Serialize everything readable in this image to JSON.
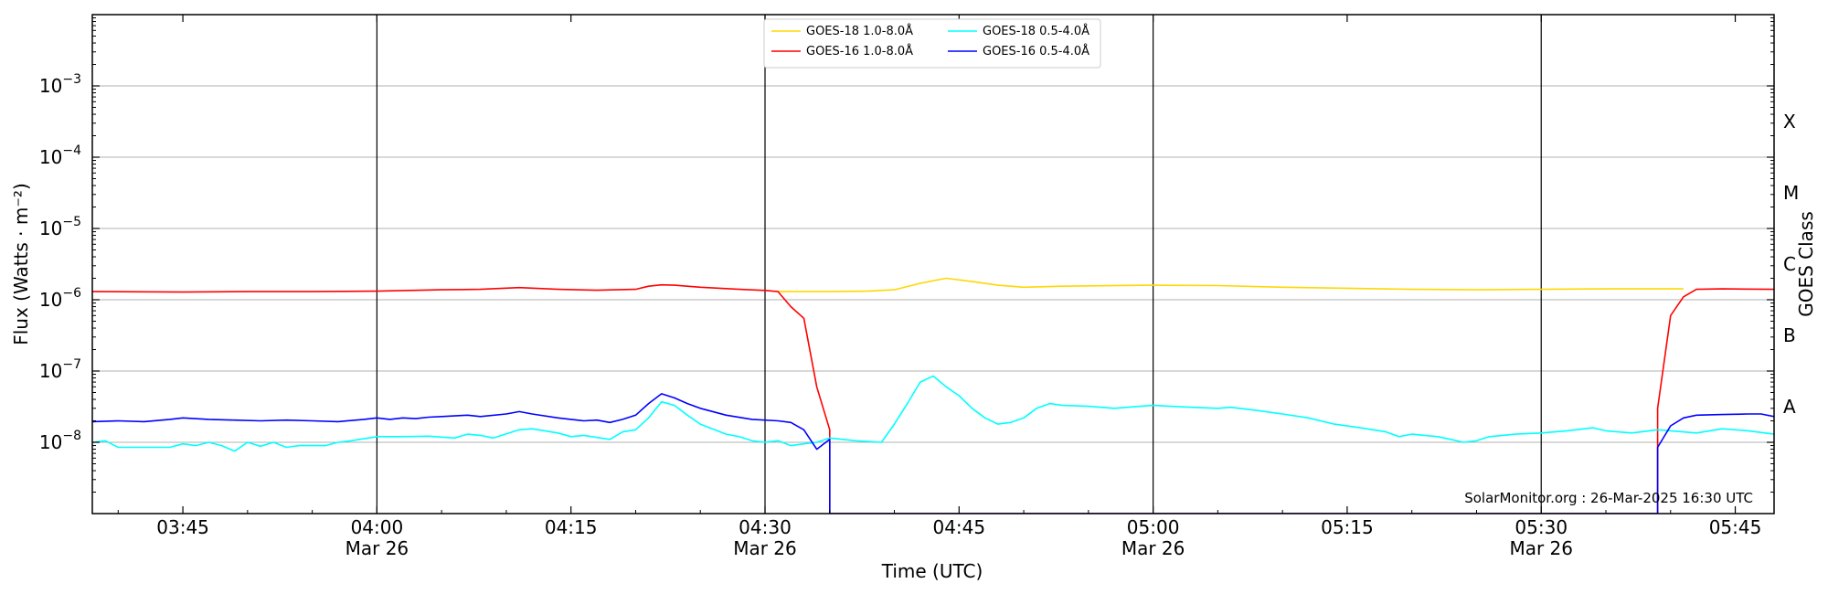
{
  "chart_data": {
    "type": "line",
    "xlabel": "Time (UTC)",
    "ylabel": "Flux (Watts · m⁻²)",
    "right_axis_title": "GOES Class",
    "credit": "SolarMonitor.org : 26-Mar-2025 16:30 UTC",
    "x_range": [
      "03:38",
      "05:48"
    ],
    "ylim": [
      1e-09,
      0.01
    ],
    "log_scale": true,
    "grid": "horizontal",
    "x_ticks": [
      {
        "time": "03:45",
        "label": "03:45",
        "sublabel": ""
      },
      {
        "time": "04:00",
        "label": "04:00",
        "sublabel": "Mar 26"
      },
      {
        "time": "04:15",
        "label": "04:15",
        "sublabel": ""
      },
      {
        "time": "04:30",
        "label": "04:30",
        "sublabel": "Mar 26"
      },
      {
        "time": "04:45",
        "label": "04:45",
        "sublabel": ""
      },
      {
        "time": "05:00",
        "label": "05:00",
        "sublabel": "Mar 26"
      },
      {
        "time": "05:15",
        "label": "05:15",
        "sublabel": ""
      },
      {
        "time": "05:30",
        "label": "05:30",
        "sublabel": "Mar 26"
      },
      {
        "time": "05:45",
        "label": "05:45",
        "sublabel": ""
      }
    ],
    "vertical_lines": [
      "04:00",
      "04:30",
      "05:00",
      "05:30"
    ],
    "y_ticks": [
      {
        "value": 1e-08,
        "base": "10",
        "exp": "−8"
      },
      {
        "value": 1e-07,
        "base": "10",
        "exp": "−7"
      },
      {
        "value": 1e-06,
        "base": "10",
        "exp": "−6"
      },
      {
        "value": 1e-05,
        "base": "10",
        "exp": "−5"
      },
      {
        "value": 0.0001,
        "base": "10",
        "exp": "−4"
      },
      {
        "value": 0.001,
        "base": "10",
        "exp": "−3"
      }
    ],
    "class_labels": [
      {
        "label": "A",
        "value": 3.16e-08
      },
      {
        "label": "B",
        "value": 3.16e-07
      },
      {
        "label": "C",
        "value": 3.16e-06
      },
      {
        "label": "M",
        "value": 3.16e-05
      },
      {
        "label": "X",
        "value": 0.000316
      }
    ],
    "legend": [
      {
        "label": "GOES-18 1.0-8.0Å",
        "color": "#ffd700"
      },
      {
        "label": "GOES-16 1.0-8.0Å",
        "color": "#ff0000"
      },
      {
        "label": "GOES-18 0.5-4.0Å",
        "color": "#00ffff"
      },
      {
        "label": "GOES-16 0.5-4.0Å",
        "color": "#0000ff"
      }
    ],
    "series": [
      {
        "name": "GOES-18 1.0-8.0Å",
        "color": "#ffd700",
        "points": [
          [
            "04:31",
            1.3e-06
          ],
          [
            "04:35",
            1.3e-06
          ],
          [
            "04:38",
            1.32e-06
          ],
          [
            "04:40",
            1.38e-06
          ],
          [
            "04:42",
            1.7e-06
          ],
          [
            "04:44",
            2e-06
          ],
          [
            "04:46",
            1.8e-06
          ],
          [
            "04:48",
            1.6e-06
          ],
          [
            "04:50",
            1.5e-06
          ],
          [
            "04:53",
            1.55e-06
          ],
          [
            "04:56",
            1.57e-06
          ],
          [
            "05:00",
            1.6e-06
          ],
          [
            "05:05",
            1.58e-06
          ],
          [
            "05:10",
            1.5e-06
          ],
          [
            "05:15",
            1.45e-06
          ],
          [
            "05:20",
            1.4e-06
          ],
          [
            "05:25",
            1.38e-06
          ],
          [
            "05:30",
            1.4e-06
          ],
          [
            "05:35",
            1.42e-06
          ],
          [
            "05:41",
            1.42e-06
          ]
        ]
      },
      {
        "name": "GOES-16 1.0-8.0Å",
        "color": "#ff0000",
        "points": [
          [
            "03:38",
            1.3e-06
          ],
          [
            "03:45",
            1.28e-06
          ],
          [
            "03:50",
            1.3e-06
          ],
          [
            "03:55",
            1.3e-06
          ],
          [
            "04:00",
            1.32e-06
          ],
          [
            "04:05",
            1.38e-06
          ],
          [
            "04:08",
            1.4e-06
          ],
          [
            "04:11",
            1.48e-06
          ],
          [
            "04:14",
            1.4e-06
          ],
          [
            "04:17",
            1.36e-06
          ],
          [
            "04:20",
            1.4e-06
          ],
          [
            "04:21",
            1.55e-06
          ],
          [
            "04:22",
            1.62e-06
          ],
          [
            "04:23",
            1.6e-06
          ],
          [
            "04:25",
            1.5e-06
          ],
          [
            "04:28",
            1.4e-06
          ],
          [
            "04:30",
            1.35e-06
          ],
          [
            "04:31",
            1.3e-06
          ],
          [
            "04:32",
            8e-07
          ],
          [
            "04:33",
            5.5e-07
          ],
          [
            "04:34",
            6e-08
          ],
          [
            "04:35",
            1.5e-08
          ],
          [
            "04:35",
            1e-09
          ],
          [
            "05:39",
            1e-09
          ],
          [
            "05:39",
            3e-08
          ],
          [
            "05:40",
            6e-07
          ],
          [
            "05:41",
            1.1e-06
          ],
          [
            "05:42",
            1.4e-06
          ],
          [
            "05:44",
            1.42e-06
          ],
          [
            "05:48",
            1.4e-06
          ]
        ]
      },
      {
        "name": "GOES-18 0.5-4.0Å",
        "color": "#00ffff",
        "points": [
          [
            "03:38",
            1e-08
          ],
          [
            "03:39",
            1.05e-08
          ],
          [
            "03:40",
            8.5e-09
          ],
          [
            "03:42",
            8.5e-09
          ],
          [
            "03:44",
            8.5e-09
          ],
          [
            "03:45",
            9.5e-09
          ],
          [
            "03:46",
            9e-09
          ],
          [
            "03:47",
            1e-08
          ],
          [
            "03:48",
            9e-09
          ],
          [
            "03:49",
            7.5e-09
          ],
          [
            "03:50",
            1e-08
          ],
          [
            "03:51",
            8.8e-09
          ],
          [
            "03:52",
            1e-08
          ],
          [
            "03:53",
            8.5e-09
          ],
          [
            "03:54",
            9e-09
          ],
          [
            "03:56",
            9e-09
          ],
          [
            "03:57",
            1e-08
          ],
          [
            "03:58",
            1.05e-08
          ],
          [
            "04:00",
            1.2e-08
          ],
          [
            "04:02",
            1.2e-08
          ],
          [
            "04:04",
            1.22e-08
          ],
          [
            "04:06",
            1.15e-08
          ],
          [
            "04:07",
            1.3e-08
          ],
          [
            "04:08",
            1.25e-08
          ],
          [
            "04:09",
            1.15e-08
          ],
          [
            "04:11",
            1.5e-08
          ],
          [
            "04:12",
            1.55e-08
          ],
          [
            "04:14",
            1.35e-08
          ],
          [
            "04:15",
            1.2e-08
          ],
          [
            "04:16",
            1.25e-08
          ],
          [
            "04:18",
            1.1e-08
          ],
          [
            "04:19",
            1.4e-08
          ],
          [
            "04:20",
            1.5e-08
          ],
          [
            "04:21",
            2.2e-08
          ],
          [
            "04:22",
            3.7e-08
          ],
          [
            "04:23",
            3.3e-08
          ],
          [
            "04:24",
            2.4e-08
          ],
          [
            "04:25",
            1.8e-08
          ],
          [
            "04:27",
            1.3e-08
          ],
          [
            "04:28",
            1.2e-08
          ],
          [
            "04:29",
            1.05e-08
          ],
          [
            "04:30",
            1e-08
          ],
          [
            "04:31",
            1.05e-08
          ],
          [
            "04:32",
            9e-09
          ],
          [
            "04:33",
            9.5e-09
          ],
          [
            "04:34",
            1e-08
          ],
          [
            "04:35",
            1.15e-08
          ],
          [
            "04:36",
            1.1e-08
          ],
          [
            "04:37",
            1.05e-08
          ],
          [
            "04:39",
            1e-08
          ],
          [
            "04:40",
            1.8e-08
          ],
          [
            "04:41",
            3.5e-08
          ],
          [
            "04:42",
            7e-08
          ],
          [
            "04:43",
            8.5e-08
          ],
          [
            "04:44",
            6e-08
          ],
          [
            "04:45",
            4.5e-08
          ],
          [
            "04:46",
            3e-08
          ],
          [
            "04:47",
            2.2e-08
          ],
          [
            "04:48",
            1.8e-08
          ],
          [
            "04:49",
            1.9e-08
          ],
          [
            "04:50",
            2.2e-08
          ],
          [
            "04:51",
            3e-08
          ],
          [
            "04:52",
            3.5e-08
          ],
          [
            "04:53",
            3.3e-08
          ],
          [
            "04:55",
            3.2e-08
          ],
          [
            "04:57",
            3e-08
          ],
          [
            "04:59",
            3.2e-08
          ],
          [
            "05:00",
            3.3e-08
          ],
          [
            "05:03",
            3.1e-08
          ],
          [
            "05:05",
            3e-08
          ],
          [
            "05:06",
            3.1e-08
          ],
          [
            "05:08",
            2.8e-08
          ],
          [
            "05:10",
            2.5e-08
          ],
          [
            "05:12",
            2.2e-08
          ],
          [
            "05:14",
            1.8e-08
          ],
          [
            "05:16",
            1.6e-08
          ],
          [
            "05:18",
            1.4e-08
          ],
          [
            "05:19",
            1.2e-08
          ],
          [
            "05:20",
            1.3e-08
          ],
          [
            "05:22",
            1.2e-08
          ],
          [
            "05:23",
            1.1e-08
          ],
          [
            "05:24",
            1e-08
          ],
          [
            "05:25",
            1.05e-08
          ],
          [
            "05:26",
            1.2e-08
          ],
          [
            "05:28",
            1.3e-08
          ],
          [
            "05:30",
            1.35e-08
          ],
          [
            "05:32",
            1.45e-08
          ],
          [
            "05:34",
            1.6e-08
          ],
          [
            "05:35",
            1.45e-08
          ],
          [
            "05:37",
            1.35e-08
          ],
          [
            "05:39",
            1.5e-08
          ],
          [
            "05:40",
            1.45e-08
          ],
          [
            "05:42",
            1.35e-08
          ],
          [
            "05:44",
            1.55e-08
          ],
          [
            "05:46",
            1.45e-08
          ],
          [
            "05:48",
            1.3e-08
          ]
        ]
      },
      {
        "name": "GOES-16 0.5-4.0Å",
        "color": "#0000ff",
        "points": [
          [
            "03:38",
            1.95e-08
          ],
          [
            "03:40",
            2e-08
          ],
          [
            "03:42",
            1.95e-08
          ],
          [
            "03:44",
            2.1e-08
          ],
          [
            "03:45",
            2.2e-08
          ],
          [
            "03:47",
            2.1e-08
          ],
          [
            "03:49",
            2.05e-08
          ],
          [
            "03:51",
            2e-08
          ],
          [
            "03:53",
            2.05e-08
          ],
          [
            "03:55",
            2e-08
          ],
          [
            "03:57",
            1.95e-08
          ],
          [
            "03:59",
            2.1e-08
          ],
          [
            "04:00",
            2.2e-08
          ],
          [
            "04:01",
            2.1e-08
          ],
          [
            "04:02",
            2.2e-08
          ],
          [
            "04:03",
            2.15e-08
          ],
          [
            "04:04",
            2.25e-08
          ],
          [
            "04:05",
            2.3e-08
          ],
          [
            "04:06",
            2.35e-08
          ],
          [
            "04:07",
            2.4e-08
          ],
          [
            "04:08",
            2.3e-08
          ],
          [
            "04:10",
            2.5e-08
          ],
          [
            "04:11",
            2.7e-08
          ],
          [
            "04:12",
            2.5e-08
          ],
          [
            "04:14",
            2.2e-08
          ],
          [
            "04:15",
            2.1e-08
          ],
          [
            "04:16",
            2e-08
          ],
          [
            "04:17",
            2.05e-08
          ],
          [
            "04:18",
            1.9e-08
          ],
          [
            "04:19",
            2.1e-08
          ],
          [
            "04:20",
            2.4e-08
          ],
          [
            "04:21",
            3.5e-08
          ],
          [
            "04:22",
            4.8e-08
          ],
          [
            "04:23",
            4.2e-08
          ],
          [
            "04:24",
            3.5e-08
          ],
          [
            "04:25",
            3e-08
          ],
          [
            "04:27",
            2.4e-08
          ],
          [
            "04:29",
            2.1e-08
          ],
          [
            "04:31",
            2e-08
          ],
          [
            "04:32",
            1.9e-08
          ],
          [
            "04:33",
            1.5e-08
          ],
          [
            "04:34",
            8e-09
          ],
          [
            "04:35",
            1.1e-08
          ],
          [
            "04:35",
            1e-09
          ],
          [
            "05:39",
            1e-09
          ],
          [
            "05:39",
            8.5e-09
          ],
          [
            "05:40",
            1.7e-08
          ],
          [
            "05:41",
            2.2e-08
          ],
          [
            "05:42",
            2.4e-08
          ],
          [
            "05:44",
            2.45e-08
          ],
          [
            "05:46",
            2.5e-08
          ],
          [
            "05:47",
            2.5e-08
          ],
          [
            "05:48",
            2.3e-08
          ]
        ]
      }
    ]
  }
}
